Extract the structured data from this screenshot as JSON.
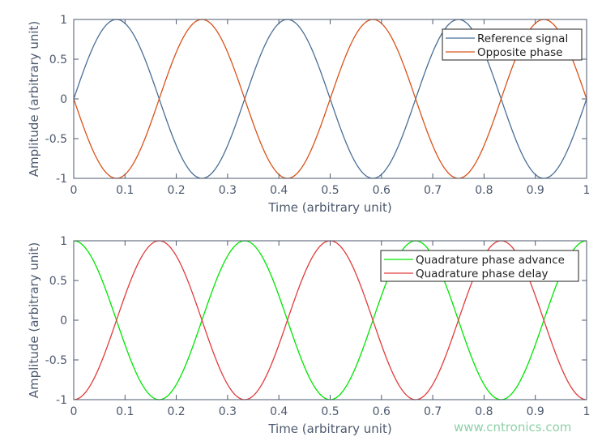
{
  "chart_data": [
    {
      "type": "line",
      "xlabel": "Time (arbitrary unit)",
      "ylabel": "Amplitude (arbitrary unit)",
      "xlim": [
        0,
        1
      ],
      "ylim": [
        -1,
        1
      ],
      "xticks": [
        "0",
        "0.1",
        "0.2",
        "0.3",
        "0.4",
        "0.5",
        "0.6",
        "0.7",
        "0.8",
        "0.9",
        "1"
      ],
      "yticks": [
        "1",
        "0.5",
        "0",
        "-0.5",
        "-1"
      ],
      "legend_position": "top-right",
      "series": [
        {
          "name": "Reference signal",
          "color": "#4a6f96",
          "function": "sin",
          "frequency": 3,
          "amplitude": 1,
          "phase_deg": 0
        },
        {
          "name": "Opposite phase",
          "color": "#d95319",
          "function": "sin",
          "frequency": 3,
          "amplitude": 1,
          "phase_deg": 180
        }
      ]
    },
    {
      "type": "line",
      "xlabel": "Time (arbitrary unit)",
      "ylabel": "Amplitude (arbitrary unit)",
      "xlim": [
        0,
        1
      ],
      "ylim": [
        -1,
        1
      ],
      "xticks": [
        "0",
        "0.1",
        "0.2",
        "0.3",
        "0.4",
        "0.5",
        "0.6",
        "0.7",
        "0.8",
        "0.9",
        "1"
      ],
      "yticks": [
        "1",
        "0.5",
        "0",
        "-0.5",
        "-1"
      ],
      "legend_position": "top-right",
      "series": [
        {
          "name": "Quadrature phase advance",
          "color": "#00e600",
          "function": "sin",
          "frequency": 3,
          "amplitude": 1,
          "phase_deg": 90
        },
        {
          "name": "Quadrature phase delay",
          "color": "#e03c3c",
          "function": "sin",
          "frequency": 3,
          "amplitude": 1,
          "phase_deg": -90
        }
      ]
    }
  ],
  "watermark": "www.cntronics.com"
}
